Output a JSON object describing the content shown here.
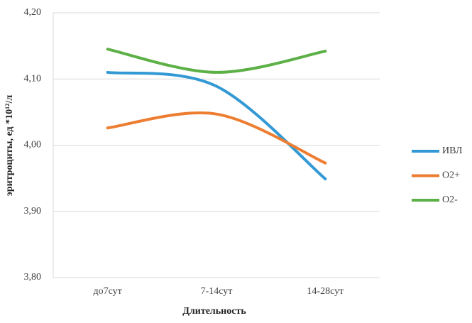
{
  "chart_data": {
    "type": "line",
    "x_label": "Длительность",
    "y_label": "эритроциты, ед *10¹²/л",
    "categories": [
      "до7сут",
      "7-14сут",
      "14-28сут"
    ],
    "series": [
      {
        "name": "ИВЛ",
        "color": "#3399d4",
        "values": [
          4.11,
          4.089,
          3.949
        ]
      },
      {
        "name": "O2+",
        "color": "#ed7d31",
        "values": [
          4.026,
          4.047,
          3.973
        ]
      },
      {
        "name": "O2-",
        "color": "#5cb046",
        "values": [
          4.145,
          4.11,
          4.142
        ]
      }
    ],
    "ylim": [
      3.8,
      4.2
    ],
    "yticks": [
      {
        "value": 3.8,
        "label": "3,80"
      },
      {
        "value": 3.9,
        "label": "3,90"
      },
      {
        "value": 4.0,
        "label": "4,00"
      },
      {
        "value": 4.1,
        "label": "4,10"
      },
      {
        "value": 4.2,
        "label": "4,20"
      }
    ],
    "grid": true,
    "smooth": true,
    "legend": "right"
  }
}
